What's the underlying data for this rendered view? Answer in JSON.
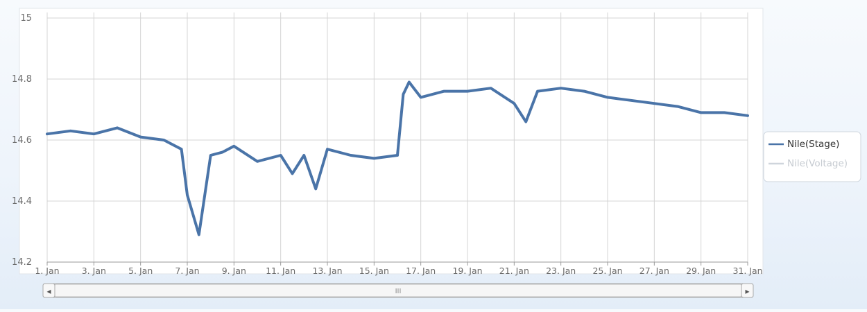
{
  "colors": {
    "stage": "#4a74a8",
    "voltage": "#cfd5dc",
    "grid": "#d4d4d4",
    "plot_bg": "#ffffff",
    "scrollbar_track": "#e9e9e9"
  },
  "legend": {
    "items": [
      {
        "label": "Nile(Stage)",
        "visible": true
      },
      {
        "label": "Nile(Voltage)",
        "visible": false
      }
    ]
  },
  "scrollbar": {
    "left_arrow": "◂",
    "right_arrow": "▸",
    "grip": "III"
  },
  "chart_data": {
    "type": "line",
    "title": "",
    "xlabel": "",
    "ylabel": "",
    "xlim": [
      "2000-01-01",
      "2000-01-31"
    ],
    "ylim": [
      14.2,
      15
    ],
    "x_ticks": [
      "1. Jan",
      "3. Jan",
      "5. Jan",
      "7. Jan",
      "9. Jan",
      "11. Jan",
      "13. Jan",
      "15. Jan",
      "17. Jan",
      "19. Jan",
      "21. Jan",
      "23. Jan",
      "25. Jan",
      "27. Jan",
      "29. Jan",
      "31. Jan"
    ],
    "y_ticks": [
      "14.2",
      "14.4",
      "14.6",
      "14.8",
      "15"
    ],
    "grid": true,
    "legend_position": "right",
    "series": [
      {
        "name": "Nile(Stage)",
        "x": [
          "2000-01-01",
          "2000-01-02",
          "2000-01-03",
          "2000-01-04",
          "2000-01-05",
          "2000-01-06",
          "2000-01-06T18:00",
          "2000-01-07",
          "2000-01-07T12:00",
          "2000-01-08",
          "2000-01-08T12:00",
          "2000-01-09",
          "2000-01-10",
          "2000-01-11",
          "2000-01-11T12:00",
          "2000-01-12",
          "2000-01-12T12:00",
          "2000-01-13",
          "2000-01-14",
          "2000-01-15",
          "2000-01-16",
          "2000-01-16T06:00",
          "2000-01-16T12:00",
          "2000-01-17",
          "2000-01-18",
          "2000-01-19",
          "2000-01-20",
          "2000-01-21",
          "2000-01-21T12:00",
          "2000-01-22",
          "2000-01-23",
          "2000-01-24",
          "2000-01-25",
          "2000-01-26",
          "2000-01-27",
          "2000-01-28",
          "2000-01-29",
          "2000-01-30",
          "2000-01-31"
        ],
        "y": [
          14.62,
          14.63,
          14.62,
          14.64,
          14.61,
          14.6,
          14.57,
          14.42,
          14.29,
          14.55,
          14.56,
          14.58,
          14.53,
          14.55,
          14.49,
          14.55,
          14.44,
          14.57,
          14.55,
          14.54,
          14.55,
          14.75,
          14.79,
          14.74,
          14.76,
          14.76,
          14.77,
          14.72,
          14.66,
          14.76,
          14.77,
          14.76,
          14.74,
          14.73,
          14.72,
          14.71,
          14.69,
          14.69,
          14.68
        ]
      },
      {
        "name": "Nile(Voltage)",
        "x": [],
        "y": []
      }
    ]
  }
}
